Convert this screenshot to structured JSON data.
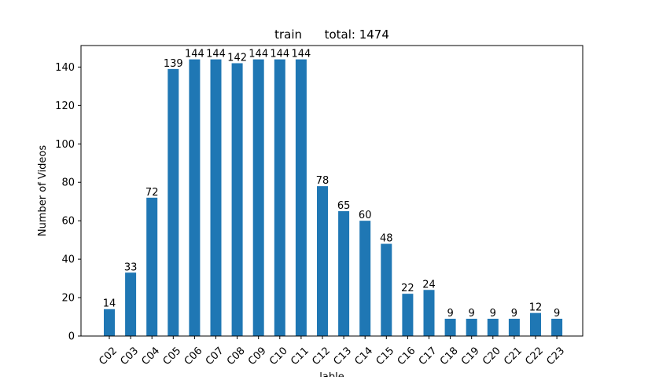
{
  "chart_data": {
    "type": "bar",
    "title": "train      total: 1474",
    "xlabel": "lable",
    "ylabel": "Number of Videos",
    "categories": [
      "C02",
      "C03",
      "C04",
      "C05",
      "C06",
      "C07",
      "C08",
      "C09",
      "C10",
      "C11",
      "C12",
      "C13",
      "C14",
      "C15",
      "C16",
      "C17",
      "C18",
      "C19",
      "C20",
      "C21",
      "C22",
      "C23"
    ],
    "values": [
      14,
      33,
      72,
      139,
      144,
      144,
      142,
      144,
      144,
      144,
      78,
      65,
      60,
      48,
      22,
      24,
      9,
      9,
      9,
      9,
      12,
      9
    ],
    "ylim": [
      0,
      151.2
    ],
    "yticks": [
      0,
      20,
      40,
      60,
      80,
      100,
      120,
      140
    ],
    "grid": false,
    "bar_color": "#1f77b4"
  }
}
